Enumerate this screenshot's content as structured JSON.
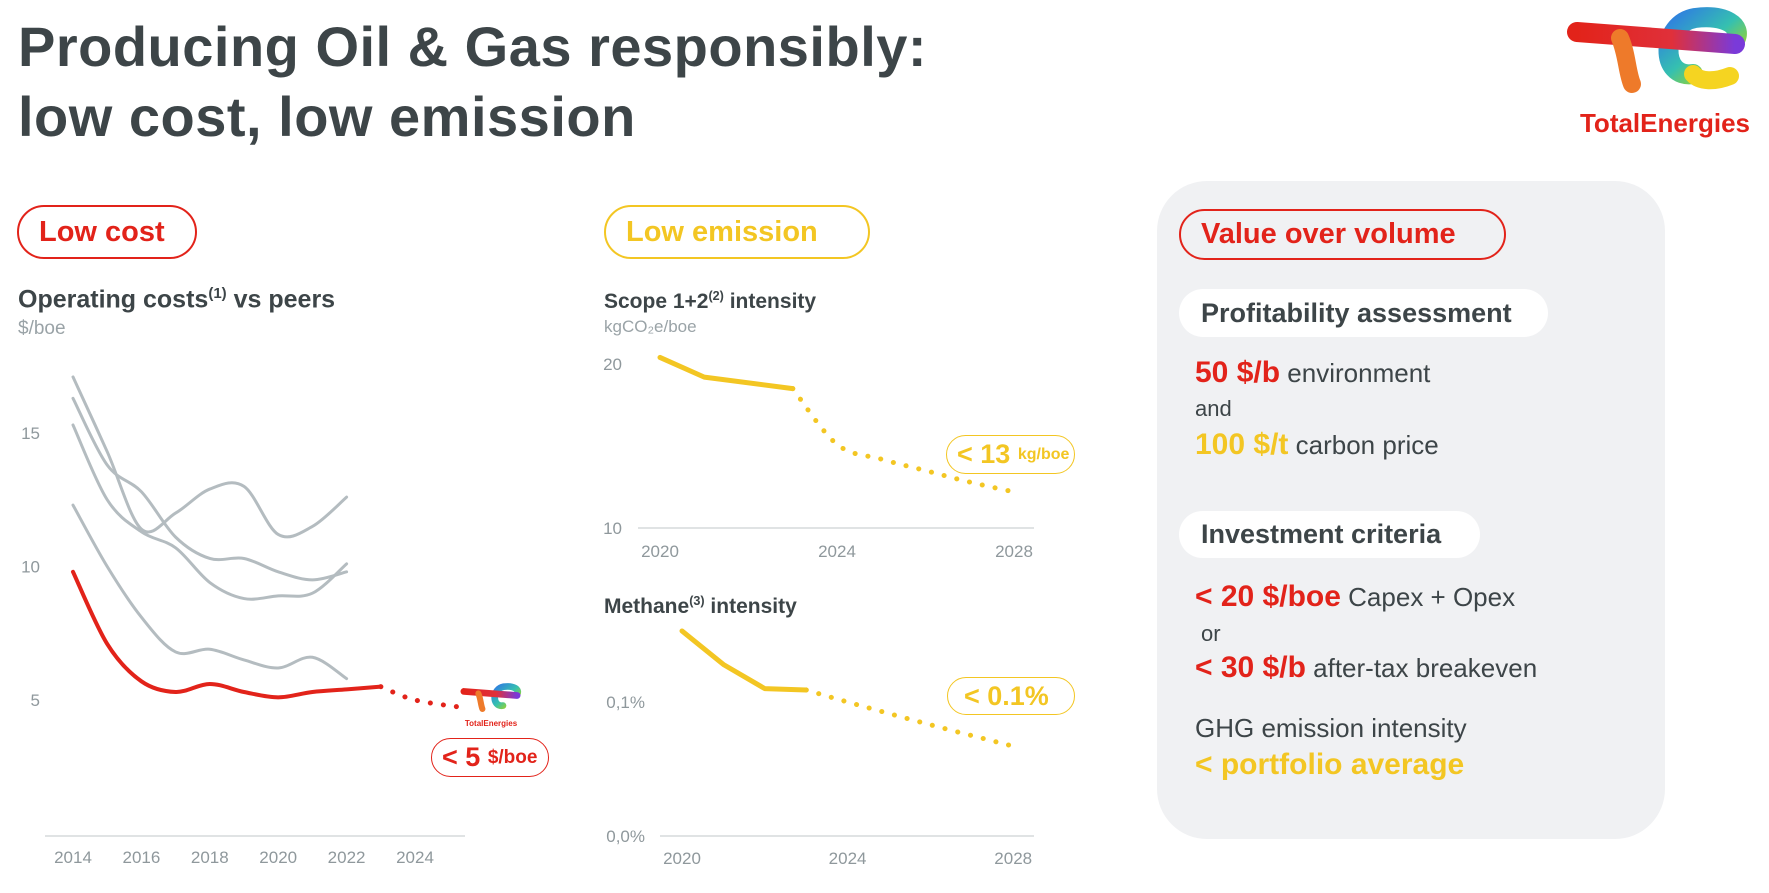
{
  "header": {
    "title_line1": "Producing Oil & Gas responsibly:",
    "title_line2": "low cost, low emission",
    "logo_text": "TotalEnergies"
  },
  "colors": {
    "red": "#e2231a",
    "yellow": "#f3c623",
    "peer_grey": "#b4bcc0",
    "text": "#3d4548",
    "panel": "#f0f1f3"
  },
  "low_cost": {
    "pill": "Low cost",
    "chart_title": "Operating costs",
    "chart_title_sup": "(1)",
    "chart_title_rest": " vs peers",
    "unit": "$/boe",
    "badge_value": "< 5",
    "badge_unit": "$/boe",
    "mini_logo_text": "TotalEnergies"
  },
  "low_emission": {
    "pill": "Low emission",
    "scope_title": "Scope 1+2",
    "scope_sup": "(2)",
    "scope_rest": " intensity",
    "scope_unit": "kgCO₂e/boe",
    "scope_badge_value": "< 13",
    "scope_badge_unit": "kg/boe",
    "methane_title": "Methane",
    "methane_sup": "(3)",
    "methane_rest": " intensity",
    "methane_badge": "< 0.1%"
  },
  "value_panel": {
    "pill": "Value over volume",
    "profitability_heading": "Profitability assessment",
    "env_value": "50 $/b",
    "env_label": "environment",
    "and": "and",
    "carbon_value": "100 $/t",
    "carbon_label": "carbon price",
    "investment_heading": "Investment criteria",
    "capex_value": "< 20 $/boe",
    "capex_label": "Capex + Opex",
    "or": "or",
    "breakeven_value": "< 30 $/b",
    "breakeven_label": "after-tax breakeven",
    "ghg_label": "GHG emission intensity",
    "ghg_value": "< portfolio average"
  },
  "chart_data": [
    {
      "type": "line",
      "title": "Operating costs(1) vs peers",
      "ylabel": "$/boe",
      "x_ticks": [
        "2014",
        "2016",
        "2018",
        "2020",
        "2022",
        "2024"
      ],
      "y_ticks": [
        "5",
        "10",
        "15"
      ],
      "xlim": [
        2014,
        2025.5
      ],
      "ylim": [
        5,
        15
      ],
      "grid": false,
      "series": [
        {
          "role": "peer",
          "color": "#b4bcc0",
          "x": [
            2014,
            2015,
            2016,
            2017,
            2018,
            2019,
            2020,
            2021,
            2022
          ],
          "y": [
            17.1,
            14.3,
            11.4,
            12.0,
            12.9,
            13.0,
            11.2,
            11.5,
            12.6
          ]
        },
        {
          "role": "peer",
          "color": "#b4bcc0",
          "x": [
            2014,
            2015,
            2016,
            2017,
            2018,
            2019,
            2020,
            2021,
            2022
          ],
          "y": [
            16.3,
            13.8,
            12.8,
            11.1,
            10.3,
            10.3,
            9.8,
            9.5,
            9.8
          ]
        },
        {
          "role": "peer",
          "color": "#b4bcc0",
          "x": [
            2014,
            2015,
            2016,
            2017,
            2018,
            2019,
            2020,
            2021,
            2022
          ],
          "y": [
            15.3,
            12.5,
            11.3,
            10.7,
            9.4,
            8.8,
            8.9,
            9.0,
            10.1
          ]
        },
        {
          "role": "peer",
          "color": "#b4bcc0",
          "x": [
            2014,
            2015,
            2016,
            2017,
            2018,
            2019,
            2020,
            2021,
            2022
          ],
          "y": [
            12.3,
            10.0,
            8.1,
            6.8,
            6.9,
            6.5,
            6.2,
            6.6,
            5.8
          ]
        },
        {
          "role": "TotalEnergies",
          "color": "#e2231a",
          "x": [
            2014,
            2015,
            2016,
            2017,
            2018,
            2019,
            2020,
            2021,
            2022,
            2023
          ],
          "y": [
            9.8,
            7.1,
            5.7,
            5.3,
            5.6,
            5.3,
            5.1,
            5.3,
            5.4,
            5.5
          ]
        },
        {
          "role": "TotalEnergies target",
          "color": "#e2231a",
          "dotted": true,
          "x": [
            2023,
            2024,
            2025.5
          ],
          "y": [
            5.5,
            5.0,
            4.7
          ]
        }
      ],
      "annotation": "< 5 $/boe"
    },
    {
      "type": "line",
      "title": "Scope 1+2(2) intensity",
      "ylabel": "kgCO₂e/boe",
      "x_ticks": [
        "2020",
        "2024",
        "2028"
      ],
      "y_ticks": [
        "10",
        "20"
      ],
      "xlim": [
        2020,
        2028
      ],
      "ylim": [
        10,
        20
      ],
      "grid": false,
      "series": [
        {
          "role": "actual",
          "color": "#f3c623",
          "x": [
            2020,
            2021,
            2023
          ],
          "y": [
            20.4,
            19.2,
            18.5
          ]
        },
        {
          "role": "target",
          "color": "#f3c623",
          "dotted": true,
          "x": [
            2023,
            2024,
            2025,
            2026,
            2027,
            2028
          ],
          "y": [
            18.5,
            15.1,
            14.2,
            13.5,
            12.8,
            12.2
          ]
        }
      ],
      "annotation": "< 13 kg/boe"
    },
    {
      "type": "line",
      "title": "Methane(3) intensity",
      "x_ticks": [
        "2020",
        "2024",
        "2028"
      ],
      "y_ticks": [
        "0,0%",
        "0,1%"
      ],
      "xlim": [
        2020,
        2028
      ],
      "ylim": [
        0,
        0.1
      ],
      "grid": false,
      "series": [
        {
          "role": "actual",
          "color": "#f3c623",
          "x": [
            2020,
            2021,
            2022,
            2023
          ],
          "y": [
            0.153,
            0.128,
            0.11,
            0.109
          ]
        },
        {
          "role": "target",
          "color": "#f3c623",
          "dotted": true,
          "x": [
            2023,
            2024,
            2026,
            2028
          ],
          "y": [
            0.109,
            0.1,
            0.083,
            0.067
          ]
        }
      ],
      "annotation": "< 0.1%"
    }
  ]
}
